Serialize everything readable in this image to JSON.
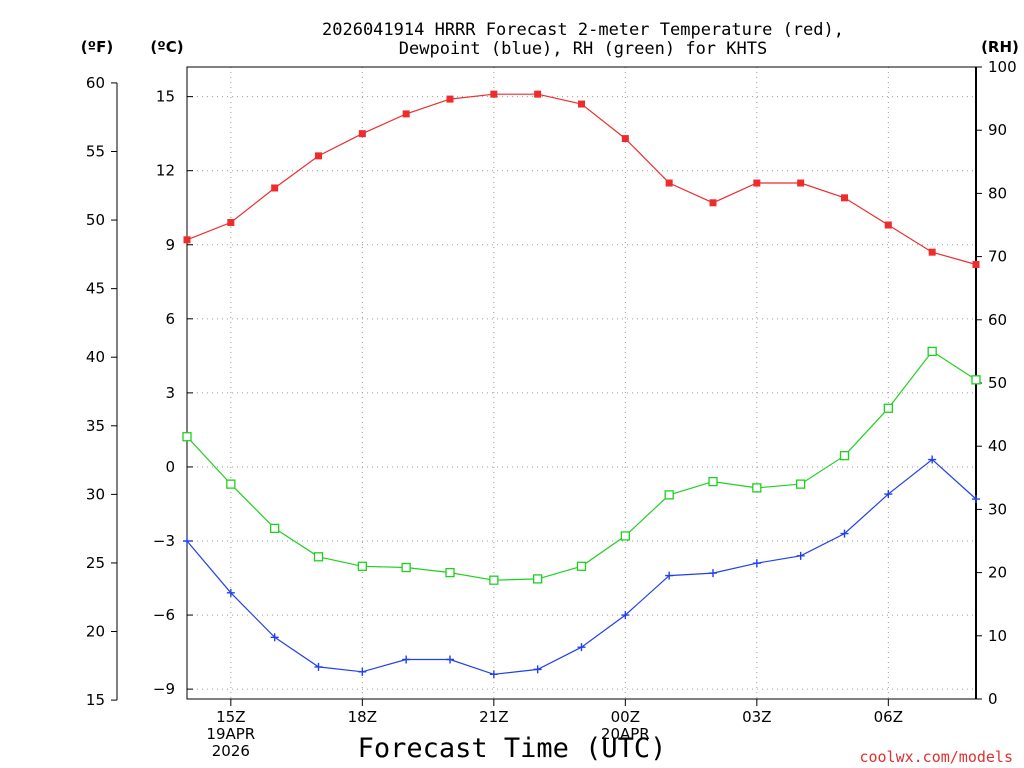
{
  "chart_data": {
    "type": "line",
    "title_line1": "2026041914 HRRR Forecast 2-meter Temperature (red),",
    "title_line2": "Dewpoint (blue), RH (green) for KHTS",
    "xlabel": "Forecast Time (UTC)",
    "credit": "coolwx.com/models",
    "units": {
      "fahrenheit": "(ºF)",
      "celsius": "(ºC)",
      "rh": "(RH)"
    },
    "x_hours": [
      14,
      15,
      16,
      17,
      18,
      19,
      20,
      21,
      22,
      23,
      24,
      25,
      26,
      27,
      28,
      29,
      30,
      31,
      32
    ],
    "xlim": [
      14,
      32
    ],
    "x_ticks": [
      {
        "hour": 15,
        "lines": [
          "15Z",
          "19APR",
          "2026"
        ]
      },
      {
        "hour": 18,
        "lines": [
          "18Z"
        ]
      },
      {
        "hour": 21,
        "lines": [
          "21Z"
        ]
      },
      {
        "hour": 24,
        "lines": [
          "00Z",
          "20APR"
        ]
      },
      {
        "hour": 27,
        "lines": [
          "03Z"
        ]
      },
      {
        "hour": 30,
        "lines": [
          "06Z"
        ]
      }
    ],
    "celsius_axis": {
      "ylim": [
        -9.4,
        16.2
      ],
      "ticks": [
        -9,
        -6,
        -3,
        0,
        3,
        6,
        9,
        12,
        15
      ],
      "tick_labels": [
        "−9",
        "−6",
        "−3",
        "0",
        "3",
        "6",
        "9",
        "12",
        "15"
      ]
    },
    "fahrenheit_axis": {
      "ticks": [
        15,
        20,
        25,
        30,
        35,
        40,
        45,
        50,
        55,
        60
      ],
      "tick_labels": [
        "15",
        "20",
        "25",
        "30",
        "35",
        "40",
        "45",
        "50",
        "55",
        "60"
      ]
    },
    "rh_axis": {
      "ylim": [
        0,
        100
      ],
      "ticks": [
        0,
        10,
        20,
        30,
        40,
        50,
        60,
        70,
        80,
        90,
        100
      ],
      "tick_labels": [
        "0",
        "10",
        "20",
        "30",
        "40",
        "50",
        "60",
        "70",
        "80",
        "90",
        "100"
      ]
    },
    "series": [
      {
        "name": "Temperature",
        "axis": "celsius",
        "color": "#ee2c2c",
        "marker": "filled-square",
        "values": [
          9.2,
          9.9,
          11.3,
          12.6,
          13.5,
          14.3,
          14.9,
          15.1,
          15.1,
          14.7,
          13.3,
          11.5,
          10.7,
          11.5,
          11.5,
          10.9,
          9.8,
          8.7,
          8.2
        ]
      },
      {
        "name": "Dewpoint",
        "axis": "celsius",
        "color": "#2040ee",
        "marker": "plus",
        "values": [
          -3.0,
          -5.1,
          -6.9,
          -8.1,
          -8.3,
          -7.8,
          -7.8,
          -8.4,
          -8.2,
          -7.3,
          -6.0,
          -4.4,
          -4.3,
          -3.9,
          -3.6,
          -2.7,
          -1.1,
          0.3,
          -1.3
        ]
      },
      {
        "name": "RH",
        "axis": "rh",
        "color": "#20d020",
        "marker": "open-square",
        "values": [
          41.5,
          34.0,
          27.0,
          22.5,
          21.0,
          20.8,
          20.0,
          18.8,
          19.0,
          21.0,
          25.8,
          32.3,
          34.4,
          33.4,
          34.0,
          38.5,
          46.0,
          55.0,
          50.5
        ]
      }
    ]
  }
}
